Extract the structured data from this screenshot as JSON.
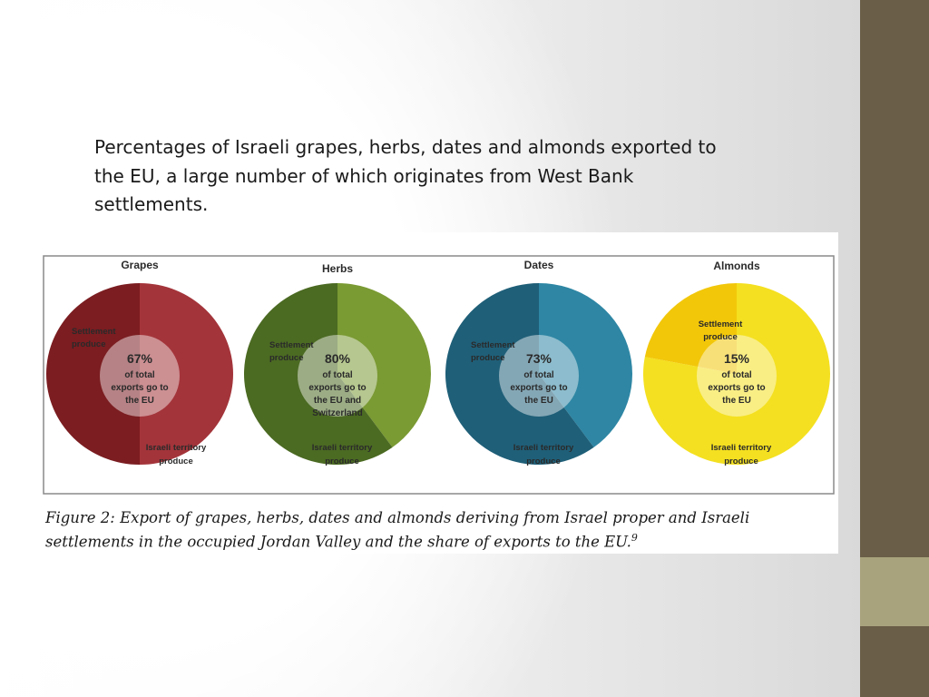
{
  "slide": {
    "caption": "Percentages of Israeli grapes, herbs, dates and almonds exported to the EU, a large number of which originates from West Bank settlements."
  },
  "figure": {
    "caption": "Figure 2: Export of grapes, herbs, dates and almonds deriving from Israel proper and Israeli settlements in the occupied Jordan Valley and the share of exports to the EU.",
    "caption_ref": "9"
  },
  "theme": {
    "sidebar_color": "#6a5e48",
    "sidebar_accent": "#a9a37d"
  },
  "chart_data": [
    {
      "type": "pie",
      "title": "Grapes",
      "eu_share_label": "67%",
      "center_text": [
        "of total",
        "exports go to",
        "the EU"
      ],
      "settlement_label": [
        "Settlement",
        "produce"
      ],
      "israeli_label": [
        "Israeli territory",
        "produce"
      ],
      "eu_share": 67,
      "settlement_share": 50,
      "colors": {
        "settlement": "#7b1d21",
        "israeli": "#a3343a"
      }
    },
    {
      "type": "pie",
      "title": "Herbs",
      "eu_share_label": "80%",
      "center_text": [
        "of total",
        "exports go to",
        "the EU and",
        "Switzerland"
      ],
      "settlement_label": [
        "Settlement",
        "produce"
      ],
      "israeli_label": [
        "Israeli territory",
        "produce"
      ],
      "eu_share": 80,
      "settlement_share": 60,
      "colors": {
        "settlement": "#4b6a22",
        "israeli": "#7a9a33"
      }
    },
    {
      "type": "pie",
      "title": "Dates",
      "eu_share_label": "73%",
      "center_text": [
        "of total",
        "exports go to",
        "the EU"
      ],
      "settlement_label": [
        "Settlement",
        "produce"
      ],
      "israeli_label": [
        "Israeli territory",
        "produce"
      ],
      "eu_share": 73,
      "settlement_share": 60,
      "colors": {
        "settlement": "#1f5f78",
        "israeli": "#2e86a4"
      }
    },
    {
      "type": "pie",
      "title": "Almonds",
      "eu_share_label": "15%",
      "center_text": [
        "of total",
        "exports go to",
        "the EU"
      ],
      "settlement_label": [
        "Settlement",
        "produce"
      ],
      "israeli_label": [
        "Israeli territory",
        "produce"
      ],
      "eu_share": 15,
      "settlement_share": 22,
      "colors": {
        "settlement": "#f2c70a",
        "israeli": "#f4e020"
      }
    }
  ]
}
